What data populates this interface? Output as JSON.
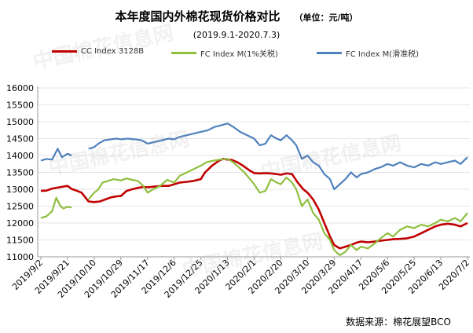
{
  "title": "本年度国内外棉花现货价格对比",
  "unit": "（单位：元/吨）",
  "subtitle": "(2019.9.1-2020.7.3)",
  "source": "数据来源：棉花展望BCO",
  "watermark": "中国棉花信息网",
  "chart_data": {
    "type": "line",
    "ylim": [
      11000,
      16000
    ],
    "yticks": [
      11000,
      11500,
      12000,
      12500,
      13000,
      13500,
      14000,
      14500,
      15000,
      15500,
      16000
    ],
    "x_dates": [
      "2019/9/2",
      "2019/9/21",
      "2019/10/10",
      "2019/10/29",
      "2019/11/17",
      "2019/12/6",
      "2019/12/25",
      "2020/1/13",
      "2020/2/1",
      "2020/2/20",
      "2020/3/10",
      "2020/3/29",
      "2020/4/17",
      "2020/5/6",
      "2020/5/25",
      "2020/6/13",
      "2020/7/2"
    ],
    "series": [
      {
        "name": "CC Index 3128B",
        "color": "#c00000",
        "points": [
          [
            "2019/9/2",
            12950
          ],
          [
            "2019/9/6",
            12960
          ],
          [
            "2019/9/10",
            13020
          ],
          [
            "2019/9/14",
            13050
          ],
          [
            "2019/9/18",
            13080
          ],
          [
            "2019/9/21",
            13100
          ],
          [
            "2019/9/24",
            13010
          ],
          [
            "2019/9/28",
            12950
          ],
          [
            "2019/10/1",
            12900
          ],
          [
            "2019/10/6",
            12640
          ],
          [
            "2019/10/10",
            12620
          ],
          [
            "2019/10/14",
            12640
          ],
          [
            "2019/10/18",
            12700
          ],
          [
            "2019/10/22",
            12760
          ],
          [
            "2019/10/26",
            12790
          ],
          [
            "2019/10/29",
            12800
          ],
          [
            "2019/11/2",
            12950
          ],
          [
            "2019/11/6",
            13000
          ],
          [
            "2019/11/10",
            13040
          ],
          [
            "2019/11/14",
            13070
          ],
          [
            "2019/11/17",
            13060
          ],
          [
            "2019/11/22",
            13080
          ],
          [
            "2019/11/27",
            13100
          ],
          [
            "2019/12/2",
            13100
          ],
          [
            "2019/12/6",
            13150
          ],
          [
            "2019/12/10",
            13200
          ],
          [
            "2019/12/15",
            13220
          ],
          [
            "2019/12/20",
            13250
          ],
          [
            "2019/12/25",
            13300
          ],
          [
            "2019/12/28",
            13500
          ],
          [
            "2020/1/2",
            13700
          ],
          [
            "2020/1/7",
            13850
          ],
          [
            "2020/1/10",
            13900
          ],
          [
            "2020/1/13",
            13880
          ],
          [
            "2020/1/16",
            13870
          ],
          [
            "2020/1/20",
            13800
          ],
          [
            "2020/1/24",
            13700
          ],
          [
            "2020/1/29",
            13550
          ],
          [
            "2020/2/1",
            13480
          ],
          [
            "2020/2/5",
            13470
          ],
          [
            "2020/2/9",
            13480
          ],
          [
            "2020/2/13",
            13470
          ],
          [
            "2020/2/17",
            13450
          ],
          [
            "2020/2/20",
            13430
          ],
          [
            "2020/2/24",
            13470
          ],
          [
            "2020/2/28",
            13450
          ],
          [
            "2020/3/3",
            13200
          ],
          [
            "2020/3/7",
            13000
          ],
          [
            "2020/3/10",
            12900
          ],
          [
            "2020/3/14",
            12700
          ],
          [
            "2020/3/18",
            12400
          ],
          [
            "2020/3/22",
            12000
          ],
          [
            "2020/3/26",
            11600
          ],
          [
            "2020/3/29",
            11350
          ],
          [
            "2020/4/2",
            11250
          ],
          [
            "2020/4/6",
            11300
          ],
          [
            "2020/4/10",
            11350
          ],
          [
            "2020/4/14",
            11420
          ],
          [
            "2020/4/17",
            11450
          ],
          [
            "2020/4/22",
            11430
          ],
          [
            "2020/4/27",
            11450
          ],
          [
            "2020/5/1",
            11480
          ],
          [
            "2020/5/6",
            11500
          ],
          [
            "2020/5/10",
            11520
          ],
          [
            "2020/5/15",
            11530
          ],
          [
            "2020/5/20",
            11550
          ],
          [
            "2020/5/25",
            11600
          ],
          [
            "2020/5/30",
            11700
          ],
          [
            "2020/6/4",
            11800
          ],
          [
            "2020/6/9",
            11900
          ],
          [
            "2020/6/13",
            11950
          ],
          [
            "2020/6/18",
            11980
          ],
          [
            "2020/6/23",
            11950
          ],
          [
            "2020/6/27",
            11900
          ],
          [
            "2020/7/2",
            12000
          ]
        ]
      },
      {
        "name": "FC Index M(1%关税)",
        "color": "#8fbf3f",
        "points": [
          [
            "2019/9/2",
            12150
          ],
          [
            "2019/9/6",
            12200
          ],
          [
            "2019/9/10",
            12350
          ],
          [
            "2019/9/13",
            12750
          ],
          [
            "2019/9/16",
            12500
          ],
          [
            "2019/9/18",
            12430
          ],
          [
            "2019/9/21",
            12480
          ],
          [
            "2019/9/24",
            12460
          ],
          [
            "2019/10/6",
            12700
          ],
          [
            "2019/10/10",
            12900
          ],
          [
            "2019/10/13",
            13000
          ],
          [
            "2019/10/16",
            13200
          ],
          [
            "2019/10/20",
            13250
          ],
          [
            "2019/10/24",
            13300
          ],
          [
            "2019/10/29",
            13260
          ],
          [
            "2019/11/2",
            13320
          ],
          [
            "2019/11/6",
            13280
          ],
          [
            "2019/11/10",
            13250
          ],
          [
            "2019/11/14",
            13100
          ],
          [
            "2019/11/17",
            12900
          ],
          [
            "2019/11/21",
            13000
          ],
          [
            "2019/11/26",
            13100
          ],
          [
            "2019/12/1",
            13280
          ],
          [
            "2019/12/6",
            13200
          ],
          [
            "2019/12/10",
            13400
          ],
          [
            "2019/12/15",
            13500
          ],
          [
            "2019/12/20",
            13600
          ],
          [
            "2019/12/25",
            13700
          ],
          [
            "2019/12/29",
            13800
          ],
          [
            "2020/1/3",
            13850
          ],
          [
            "2020/1/8",
            13880
          ],
          [
            "2020/1/13",
            13900
          ],
          [
            "2020/1/17",
            13800
          ],
          [
            "2020/1/21",
            13650
          ],
          [
            "2020/1/25",
            13500
          ],
          [
            "2020/1/29",
            13300
          ],
          [
            "2020/2/1",
            13150
          ],
          [
            "2020/2/5",
            12900
          ],
          [
            "2020/2/9",
            12950
          ],
          [
            "2020/2/13",
            13300
          ],
          [
            "2020/2/17",
            13200
          ],
          [
            "2020/2/20",
            13150
          ],
          [
            "2020/2/24",
            13350
          ],
          [
            "2020/2/28",
            13200
          ],
          [
            "2020/3/2",
            13000
          ],
          [
            "2020/3/6",
            12500
          ],
          [
            "2020/3/10",
            12700
          ],
          [
            "2020/3/14",
            12300
          ],
          [
            "2020/3/18",
            12100
          ],
          [
            "2020/3/22",
            11700
          ],
          [
            "2020/3/26",
            11500
          ],
          [
            "2020/3/29",
            11200
          ],
          [
            "2020/4/2",
            11050
          ],
          [
            "2020/4/6",
            11150
          ],
          [
            "2020/4/10",
            11350
          ],
          [
            "2020/4/14",
            11200
          ],
          [
            "2020/4/17",
            11300
          ],
          [
            "2020/4/22",
            11250
          ],
          [
            "2020/4/27",
            11400
          ],
          [
            "2020/5/1",
            11550
          ],
          [
            "2020/5/6",
            11700
          ],
          [
            "2020/5/10",
            11600
          ],
          [
            "2020/5/15",
            11800
          ],
          [
            "2020/5/20",
            11900
          ],
          [
            "2020/5/25",
            11850
          ],
          [
            "2020/5/30",
            11950
          ],
          [
            "2020/6/4",
            11900
          ],
          [
            "2020/6/9",
            12000
          ],
          [
            "2020/6/13",
            12100
          ],
          [
            "2020/6/18",
            12050
          ],
          [
            "2020/6/23",
            12150
          ],
          [
            "2020/6/27",
            12050
          ],
          [
            "2020/7/2",
            12300
          ]
        ]
      },
      {
        "name": "FC Index M(滑准税)",
        "color": "#4f81bd",
        "points": [
          [
            "2019/9/2",
            13850
          ],
          [
            "2019/9/6",
            13900
          ],
          [
            "2019/9/10",
            13880
          ],
          [
            "2019/9/14",
            14200
          ],
          [
            "2019/9/17",
            13950
          ],
          [
            "2019/9/21",
            14050
          ],
          [
            "2019/9/24",
            14000
          ],
          [
            "2019/10/6",
            14200
          ],
          [
            "2019/10/10",
            14250
          ],
          [
            "2019/10/13",
            14350
          ],
          [
            "2019/10/17",
            14450
          ],
          [
            "2019/10/22",
            14480
          ],
          [
            "2019/10/26",
            14500
          ],
          [
            "2019/10/29",
            14480
          ],
          [
            "2019/11/3",
            14500
          ],
          [
            "2019/11/8",
            14480
          ],
          [
            "2019/11/13",
            14450
          ],
          [
            "2019/11/17",
            14350
          ],
          [
            "2019/11/22",
            14400
          ],
          [
            "2019/11/27",
            14450
          ],
          [
            "2019/12/2",
            14500
          ],
          [
            "2019/12/6",
            14480
          ],
          [
            "2019/12/10",
            14550
          ],
          [
            "2019/12/15",
            14600
          ],
          [
            "2019/12/20",
            14650
          ],
          [
            "2019/12/25",
            14700
          ],
          [
            "2019/12/30",
            14750
          ],
          [
            "2020/1/4",
            14850
          ],
          [
            "2020/1/9",
            14900
          ],
          [
            "2020/1/13",
            14950
          ],
          [
            "2020/1/17",
            14850
          ],
          [
            "2020/1/22",
            14700
          ],
          [
            "2020/1/27",
            14600
          ],
          [
            "2020/2/1",
            14500
          ],
          [
            "2020/2/5",
            14300
          ],
          [
            "2020/2/9",
            14350
          ],
          [
            "2020/2/13",
            14600
          ],
          [
            "2020/2/17",
            14500
          ],
          [
            "2020/2/20",
            14450
          ],
          [
            "2020/2/24",
            14600
          ],
          [
            "2020/2/28",
            14450
          ],
          [
            "2020/3/2",
            14300
          ],
          [
            "2020/3/6",
            13900
          ],
          [
            "2020/3/10",
            14000
          ],
          [
            "2020/3/14",
            13800
          ],
          [
            "2020/3/18",
            13700
          ],
          [
            "2020/3/22",
            13450
          ],
          [
            "2020/3/26",
            13300
          ],
          [
            "2020/3/29",
            13000
          ],
          [
            "2020/4/2",
            13150
          ],
          [
            "2020/4/6",
            13300
          ],
          [
            "2020/4/10",
            13500
          ],
          [
            "2020/4/14",
            13350
          ],
          [
            "2020/4/17",
            13450
          ],
          [
            "2020/4/22",
            13500
          ],
          [
            "2020/4/27",
            13600
          ],
          [
            "2020/5/1",
            13650
          ],
          [
            "2020/5/6",
            13750
          ],
          [
            "2020/5/10",
            13700
          ],
          [
            "2020/5/15",
            13800
          ],
          [
            "2020/5/20",
            13700
          ],
          [
            "2020/5/25",
            13650
          ],
          [
            "2020/5/30",
            13750
          ],
          [
            "2020/6/4",
            13700
          ],
          [
            "2020/6/9",
            13800
          ],
          [
            "2020/6/13",
            13750
          ],
          [
            "2020/6/18",
            13800
          ],
          [
            "2020/6/23",
            13850
          ],
          [
            "2020/6/27",
            13750
          ],
          [
            "2020/7/2",
            13950
          ]
        ]
      }
    ]
  }
}
